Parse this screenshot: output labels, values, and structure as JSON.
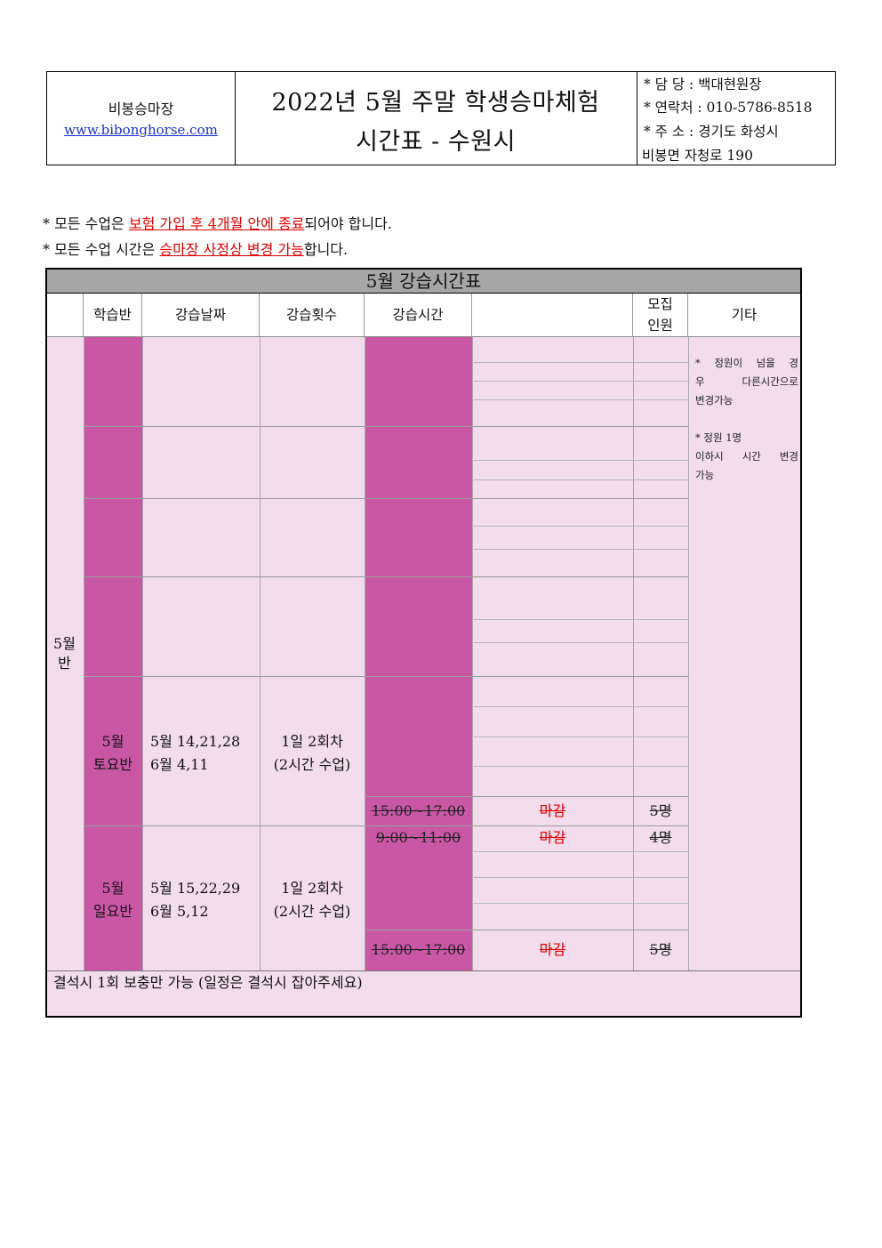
{
  "header": {
    "venue": "비봉승마장",
    "website": "www.bibonghorse.com",
    "title_line1": "2022년 5월 주말 학생승마체험",
    "title_line2": "시간표 - 수원시",
    "contact": {
      "manager": "* 담  당 : 백대현원장",
      "phone": "* 연락처 : 010-5786-8518",
      "address1": "* 주  소 : 경기도 화성시",
      "address2": "비봉면 자청로 190"
    }
  },
  "notes": {
    "line1_pre": "* 모든 수업은 ",
    "line1_red": "보험 가입 후 4개월 안에 종료",
    "line1_post": "되어야 합니다.",
    "line2_pre": "* 모든 수업 시간은 ",
    "line2_red": "승마장 사정상 변경 가능",
    "line2_post": "합니다."
  },
  "table": {
    "title": "5월 강습시간표",
    "headers": {
      "class": "학습반",
      "dates": "강습날짜",
      "count": "강습횟수",
      "time": "강습시간",
      "recruit_1": "모집",
      "recruit_2": "인원",
      "etc": "기타"
    },
    "group_label_1": "5월",
    "group_label_2": "반",
    "saturday": {
      "class_1": "5월",
      "class_2": "토요반",
      "dates_1": "5월 14,21,28",
      "dates_2": "6월 4,11",
      "count_1": "1일 2회차",
      "count_2": "(2시간 수업)",
      "slot_time": "15:00~17:00",
      "slot_status": "마감",
      "slot_people": "5명"
    },
    "sunday": {
      "class_1": "5월",
      "class_2": "일요반",
      "dates_1": "5월 15,22,29",
      "dates_2": "6월 5,12",
      "count_1": "1일 2회차",
      "count_2": "(2시간 수업)",
      "slot1_time": "9:00~11:00",
      "slot1_status": "마감",
      "slot1_people": "4명",
      "slot2_time": "15:00~17:00",
      "slot2_status": "마감",
      "slot2_people": "5명"
    },
    "etc_note_1a": "* 정원이 넘을 경",
    "etc_note_1b": "우  다른시간으로",
    "etc_note_1c": "변경가능",
    "etc_note_2a": "* 정원 1명",
    "etc_note_2b": "이하시 시간 변경",
    "etc_note_2c": "가능",
    "footer": "결석시 1회 보충만 가능 (일정은 결석시 잡아주세요)"
  },
  "colors": {
    "magenta": "#c957a6",
    "pink": "#f3dceb",
    "title_bar": "#a6a6a6",
    "red": "#e00000",
    "link": "#1a2fd0"
  }
}
